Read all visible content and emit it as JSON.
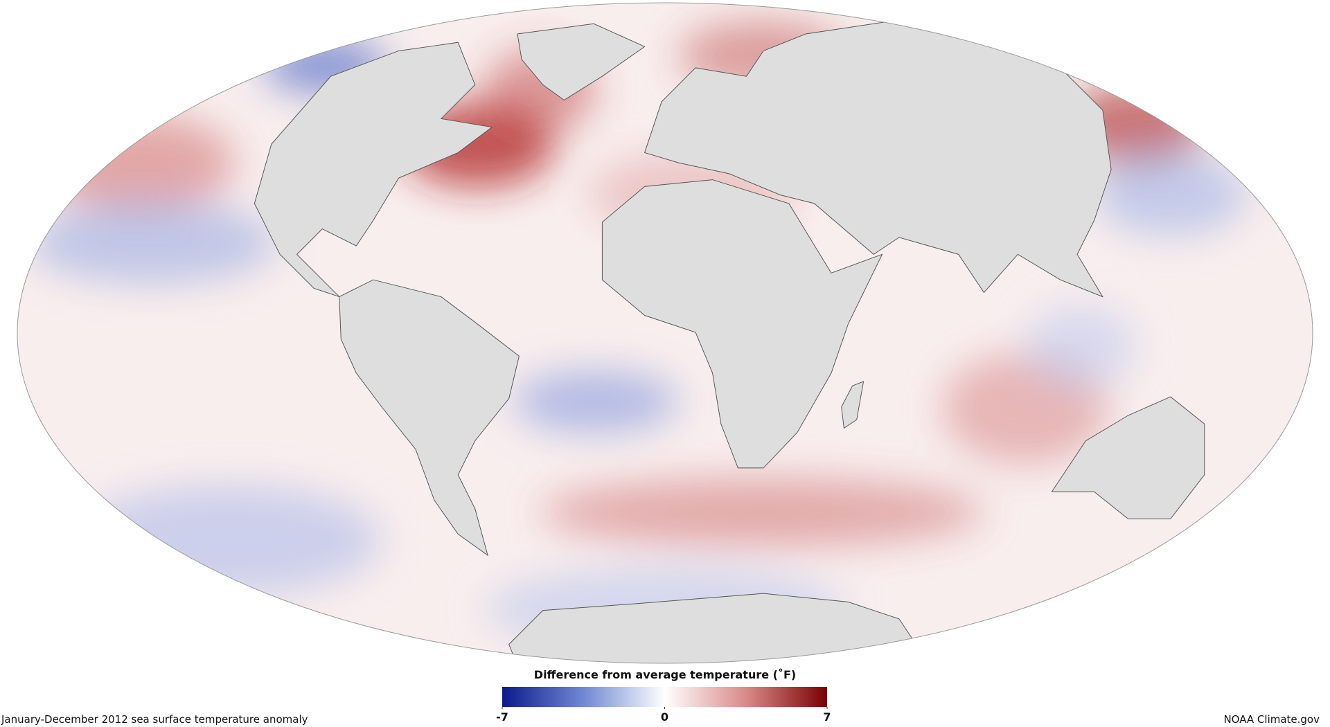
{
  "map": {
    "caption": "January-December 2012 sea surface temperature anomaly",
    "credit": "NOAA Climate.gov",
    "legend": {
      "title": "Difference from average temperature (˚F)",
      "lim": [
        -7,
        7
      ],
      "ticks": [
        -7,
        0,
        7
      ],
      "colors": [
        "#0b1b8c",
        "#7088d4",
        "#ffffff",
        "#d98a8a",
        "#7a0000"
      ]
    }
  }
}
